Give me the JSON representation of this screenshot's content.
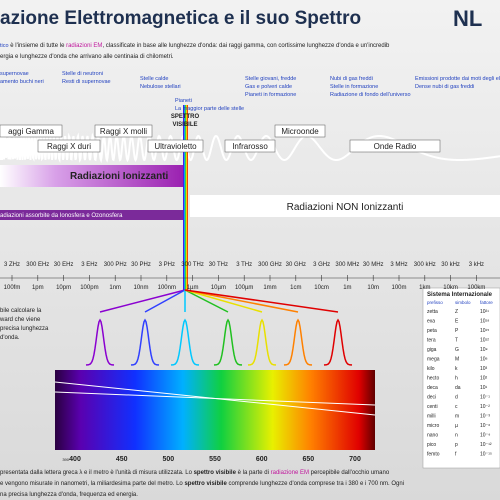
{
  "header": {
    "title": "azione Elettromagnetica e il suo Spettro",
    "logo": "NL"
  },
  "intro": {
    "line1": [
      "tico",
      " è l'insieme di tutte le ",
      "radiazioni EM",
      ", classificate in base alle lunghezze d'onda: dai raggi gamma, con cortissime lunghezze d'onda e un'incredib"
    ],
    "line2": "ergia e lunghezze d'onda che arrivano alle centinaia di chilometri."
  },
  "sources": [
    {
      "lines": [
        "supernovae",
        "amento buchi neri"
      ]
    },
    {
      "lines": [
        "Stelle di neutroni",
        "Resti di supernovae"
      ]
    },
    {
      "lines": [
        "Stelle calde",
        "Nebulose stellari"
      ]
    },
    {
      "lines": [
        "Pianeti",
        "La maggior parte delle stelle"
      ]
    },
    {
      "lines": [
        "Stelle giovani, fredde",
        "Gas e polveri calde",
        "Pianeti in formazione"
      ]
    },
    {
      "lines": [
        "Nubi di gas freddi",
        "Stelle in formazione",
        "Radiazione di fondo dell'universo"
      ]
    },
    {
      "lines": [
        "Emissioni prodotte dai moti degli elettroni nei campi magnetici",
        "Dense nubi di gas freddi"
      ]
    }
  ],
  "bands": [
    "aggi Gamma",
    "Raggi X duri",
    "Raggi X molli",
    "Ultravioletto",
    "Infrarosso",
    "Microonde",
    "Onde Radio"
  ],
  "visible_label": [
    "SPETTRO",
    "VISIBILE"
  ],
  "ionizing": "Radiazioni Ionizzanti",
  "non_ionizing": "Radiazioni NON Ionizzanti",
  "absorbed": "adiazioni assorbite da Ionosfera e Ozonosfera",
  "frequencies": [
    "3 ZHz",
    "300 EHz",
    "30 EHz",
    "3 EHz",
    "300 PHz",
    "30 PHz",
    "3 PHz",
    "300 THz",
    "30 THz",
    "3 THz",
    "300 GHz",
    "30 GHz",
    "3 GHz",
    "300 MHz",
    "30 MHz",
    "3 MHz",
    "300 kHz",
    "30 kHz",
    "3 kHz"
  ],
  "wavelengths": [
    "100fm",
    "1pm",
    "10pm",
    "100pm",
    "1nm",
    "10nm",
    "100nm",
    "1µm",
    "10µm",
    "100µm",
    "1mm",
    "1cm",
    "10cm",
    "1m",
    "10m",
    "100m",
    "1km",
    "10km",
    "100km"
  ],
  "side_text": [
    "bile calcolare la",
    "ward che viene",
    "precisa lunghezza",
    "d'onda."
  ],
  "spectrum_ticks": [
    "390",
    "400",
    "450",
    "500",
    "550",
    "600",
    "650",
    "700"
  ],
  "si_table": {
    "title": "Sistema Internazionale",
    "headers": [
      "prefisso",
      "simbolo",
      "fattore"
    ],
    "rows": [
      [
        "zetta",
        "Z",
        "10²¹"
      ],
      [
        "exa",
        "E",
        "10¹⁸"
      ],
      [
        "peta",
        "P",
        "10¹⁵"
      ],
      [
        "tera",
        "T",
        "10¹²"
      ],
      [
        "giga",
        "G",
        "10⁹"
      ],
      [
        "mega",
        "M",
        "10⁶"
      ],
      [
        "kilo",
        "k",
        "10³"
      ],
      [
        "hecto",
        "h",
        "10²"
      ],
      [
        "deca",
        "da",
        "10¹"
      ],
      [
        "deci",
        "d",
        "10⁻¹"
      ],
      [
        "centi",
        "c",
        "10⁻²"
      ],
      [
        "milli",
        "m",
        "10⁻³"
      ],
      [
        "micro",
        "µ",
        "10⁻⁶"
      ],
      [
        "nano",
        "n",
        "10⁻⁹"
      ],
      [
        "pico",
        "p",
        "10⁻¹²"
      ],
      [
        "femto",
        "f",
        "10⁻¹⁵"
      ]
    ]
  },
  "footer": {
    "line1": [
      "presentata dalla lettera greca λ e il metro è l'unità di misura utilizzata. Lo ",
      "spettro visibile",
      " è la parte di ",
      "radiazione EM",
      " percepibile dall'occhio umano"
    ],
    "line2": [
      "e vengono misurate in nanometri, la miliardesima parte del metro. Lo ",
      "spettro visibile",
      " comprende lunghezze d'onda comprese tra i 380 e i 700 nm. Ogni"
    ],
    "line3": "na precisa lunghezza d'onda, frequenza ed energia."
  }
}
